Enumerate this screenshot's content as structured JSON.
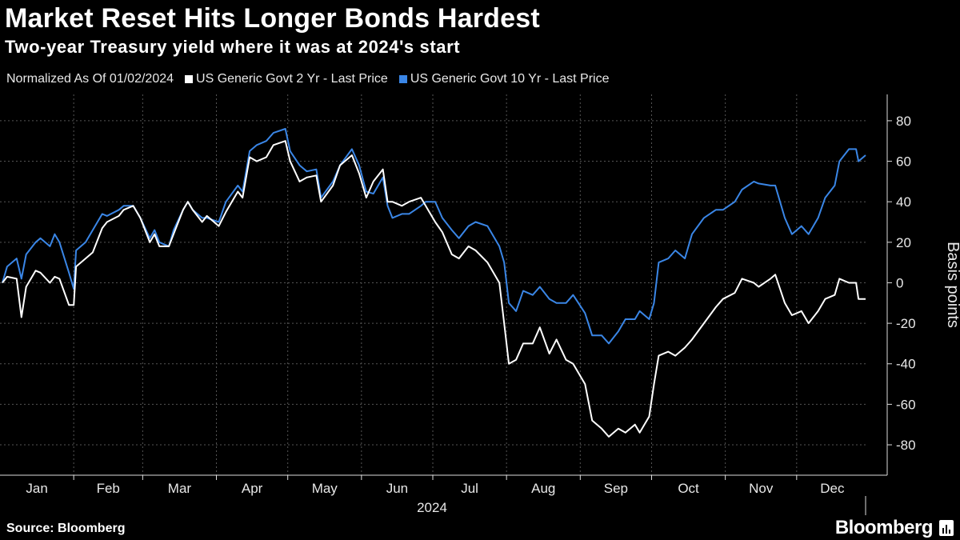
{
  "header": {
    "title": "Market Reset Hits Longer Bonds Hardest",
    "subtitle": "Two-year Treasury yield where it was at 2024's start"
  },
  "legend": {
    "note": "Normalized As Of 01/02/2024",
    "items": [
      {
        "label": "US Generic Govt 2 Yr - Last Price",
        "color": "#ffffff"
      },
      {
        "label": "US Generic Govt 10 Yr - Last Price",
        "color": "#3a86e6"
      }
    ]
  },
  "footer": {
    "source": "Source: Bloomberg",
    "brand": "Bloomberg"
  },
  "chart_data": {
    "type": "line",
    "ylabel": "Basis points",
    "xlabel": "2024",
    "ylim": [
      -95,
      93
    ],
    "yticks": [
      80,
      60,
      40,
      20,
      0,
      -20,
      -40,
      -60,
      -80
    ],
    "months": [
      "Jan",
      "Feb",
      "Mar",
      "Apr",
      "May",
      "Jun",
      "Jul",
      "Aug",
      "Sep",
      "Oct",
      "Nov",
      "Dec"
    ],
    "grid": true,
    "y_axis_side": "right",
    "series": [
      {
        "name": "US Generic Govt 2 Yr - Last Price",
        "color": "#ffffff",
        "points": [
          [
            "2024-01-02",
            0
          ],
          [
            "2024-01-04",
            3
          ],
          [
            "2024-01-08",
            2
          ],
          [
            "2024-01-10",
            -17
          ],
          [
            "2024-01-12",
            -2
          ],
          [
            "2024-01-16",
            6
          ],
          [
            "2024-01-18",
            5
          ],
          [
            "2024-01-22",
            0
          ],
          [
            "2024-01-24",
            3
          ],
          [
            "2024-01-26",
            2
          ],
          [
            "2024-01-30",
            -11
          ],
          [
            "2024-02-01",
            -11
          ],
          [
            "2024-02-02",
            8
          ],
          [
            "2024-02-06",
            12
          ],
          [
            "2024-02-09",
            15
          ],
          [
            "2024-02-13",
            27
          ],
          [
            "2024-02-15",
            30
          ],
          [
            "2024-02-20",
            33
          ],
          [
            "2024-02-22",
            36
          ],
          [
            "2024-02-26",
            38
          ],
          [
            "2024-02-29",
            32
          ],
          [
            "2024-03-04",
            20
          ],
          [
            "2024-03-06",
            24
          ],
          [
            "2024-03-08",
            18
          ],
          [
            "2024-03-12",
            18
          ],
          [
            "2024-03-14",
            24
          ],
          [
            "2024-03-18",
            36
          ],
          [
            "2024-03-20",
            40
          ],
          [
            "2024-03-22",
            36
          ],
          [
            "2024-03-26",
            30
          ],
          [
            "2024-03-28",
            33
          ],
          [
            "2024-04-02",
            28
          ],
          [
            "2024-04-05",
            35
          ],
          [
            "2024-04-10",
            45
          ],
          [
            "2024-04-12",
            42
          ],
          [
            "2024-04-15",
            62
          ],
          [
            "2024-04-18",
            60
          ],
          [
            "2024-04-22",
            62
          ],
          [
            "2024-04-25",
            68
          ],
          [
            "2024-04-30",
            70
          ],
          [
            "2024-05-02",
            60
          ],
          [
            "2024-05-06",
            50
          ],
          [
            "2024-05-09",
            52
          ],
          [
            "2024-05-13",
            53
          ],
          [
            "2024-05-15",
            40
          ],
          [
            "2024-05-20",
            48
          ],
          [
            "2024-05-23",
            58
          ],
          [
            "2024-05-28",
            63
          ],
          [
            "2024-05-31",
            54
          ],
          [
            "2024-06-03",
            42
          ],
          [
            "2024-06-06",
            50
          ],
          [
            "2024-06-10",
            56
          ],
          [
            "2024-06-12",
            40
          ],
          [
            "2024-06-14",
            40
          ],
          [
            "2024-06-18",
            38
          ],
          [
            "2024-06-21",
            40
          ],
          [
            "2024-06-26",
            42
          ],
          [
            "2024-06-28",
            38
          ],
          [
            "2024-07-02",
            30
          ],
          [
            "2024-07-05",
            25
          ],
          [
            "2024-07-09",
            14
          ],
          [
            "2024-07-12",
            12
          ],
          [
            "2024-07-16",
            18
          ],
          [
            "2024-07-19",
            16
          ],
          [
            "2024-07-24",
            10
          ],
          [
            "2024-07-29",
            0
          ],
          [
            "2024-07-31",
            -20
          ],
          [
            "2024-08-02",
            -40
          ],
          [
            "2024-08-05",
            -38
          ],
          [
            "2024-08-08",
            -30
          ],
          [
            "2024-08-12",
            -30
          ],
          [
            "2024-08-15",
            -22
          ],
          [
            "2024-08-19",
            -35
          ],
          [
            "2024-08-22",
            -28
          ],
          [
            "2024-08-26",
            -38
          ],
          [
            "2024-08-29",
            -40
          ],
          [
            "2024-09-03",
            -50
          ],
          [
            "2024-09-06",
            -68
          ],
          [
            "2024-09-10",
            -72
          ],
          [
            "2024-09-13",
            -76
          ],
          [
            "2024-09-17",
            -72
          ],
          [
            "2024-09-20",
            -74
          ],
          [
            "2024-09-24",
            -70
          ],
          [
            "2024-09-26",
            -74
          ],
          [
            "2024-09-30",
            -66
          ],
          [
            "2024-10-02",
            -50
          ],
          [
            "2024-10-04",
            -36
          ],
          [
            "2024-10-08",
            -34
          ],
          [
            "2024-10-11",
            -36
          ],
          [
            "2024-10-15",
            -32
          ],
          [
            "2024-10-18",
            -28
          ],
          [
            "2024-10-23",
            -20
          ],
          [
            "2024-10-28",
            -12
          ],
          [
            "2024-10-31",
            -8
          ],
          [
            "2024-11-05",
            -5
          ],
          [
            "2024-11-08",
            2
          ],
          [
            "2024-11-13",
            0
          ],
          [
            "2024-11-15",
            -2
          ],
          [
            "2024-11-20",
            2
          ],
          [
            "2024-11-22",
            4
          ],
          [
            "2024-11-26",
            -10
          ],
          [
            "2024-11-29",
            -16
          ],
          [
            "2024-12-03",
            -14
          ],
          [
            "2024-12-06",
            -20
          ],
          [
            "2024-12-10",
            -14
          ],
          [
            "2024-12-13",
            -8
          ],
          [
            "2024-12-17",
            -6
          ],
          [
            "2024-12-19",
            2
          ],
          [
            "2024-12-23",
            0
          ],
          [
            "2024-12-26",
            0
          ],
          [
            "2024-12-27",
            -8
          ],
          [
            "2024-12-30",
            -8
          ]
        ]
      },
      {
        "name": "US Generic Govt 10 Yr - Last Price",
        "color": "#3a86e6",
        "points": [
          [
            "2024-01-02",
            0
          ],
          [
            "2024-01-04",
            8
          ],
          [
            "2024-01-08",
            12
          ],
          [
            "2024-01-10",
            2
          ],
          [
            "2024-01-12",
            14
          ],
          [
            "2024-01-16",
            20
          ],
          [
            "2024-01-18",
            22
          ],
          [
            "2024-01-22",
            18
          ],
          [
            "2024-01-24",
            24
          ],
          [
            "2024-01-26",
            20
          ],
          [
            "2024-01-30",
            5
          ],
          [
            "2024-02-01",
            -3
          ],
          [
            "2024-02-02",
            16
          ],
          [
            "2024-02-06",
            20
          ],
          [
            "2024-02-09",
            26
          ],
          [
            "2024-02-13",
            34
          ],
          [
            "2024-02-15",
            33
          ],
          [
            "2024-02-20",
            36
          ],
          [
            "2024-02-22",
            38
          ],
          [
            "2024-02-26",
            38
          ],
          [
            "2024-02-29",
            32
          ],
          [
            "2024-03-04",
            22
          ],
          [
            "2024-03-06",
            26
          ],
          [
            "2024-03-08",
            20
          ],
          [
            "2024-03-12",
            18
          ],
          [
            "2024-03-14",
            26
          ],
          [
            "2024-03-18",
            36
          ],
          [
            "2024-03-20",
            40
          ],
          [
            "2024-03-22",
            36
          ],
          [
            "2024-03-26",
            32
          ],
          [
            "2024-03-28",
            32
          ],
          [
            "2024-04-02",
            30
          ],
          [
            "2024-04-05",
            40
          ],
          [
            "2024-04-10",
            48
          ],
          [
            "2024-04-12",
            45
          ],
          [
            "2024-04-15",
            65
          ],
          [
            "2024-04-18",
            68
          ],
          [
            "2024-04-22",
            70
          ],
          [
            "2024-04-25",
            74
          ],
          [
            "2024-04-30",
            76
          ],
          [
            "2024-05-02",
            65
          ],
          [
            "2024-05-06",
            58
          ],
          [
            "2024-05-09",
            55
          ],
          [
            "2024-05-13",
            56
          ],
          [
            "2024-05-15",
            42
          ],
          [
            "2024-05-20",
            50
          ],
          [
            "2024-05-23",
            58
          ],
          [
            "2024-05-28",
            66
          ],
          [
            "2024-05-31",
            58
          ],
          [
            "2024-06-03",
            45
          ],
          [
            "2024-06-06",
            44
          ],
          [
            "2024-06-10",
            52
          ],
          [
            "2024-06-12",
            38
          ],
          [
            "2024-06-14",
            32
          ],
          [
            "2024-06-18",
            34
          ],
          [
            "2024-06-21",
            34
          ],
          [
            "2024-06-26",
            38
          ],
          [
            "2024-06-28",
            40
          ],
          [
            "2024-07-02",
            40
          ],
          [
            "2024-07-05",
            32
          ],
          [
            "2024-07-09",
            26
          ],
          [
            "2024-07-12",
            22
          ],
          [
            "2024-07-16",
            28
          ],
          [
            "2024-07-19",
            30
          ],
          [
            "2024-07-24",
            28
          ],
          [
            "2024-07-29",
            18
          ],
          [
            "2024-07-31",
            10
          ],
          [
            "2024-08-02",
            -10
          ],
          [
            "2024-08-05",
            -14
          ],
          [
            "2024-08-08",
            -4
          ],
          [
            "2024-08-12",
            -6
          ],
          [
            "2024-08-15",
            -2
          ],
          [
            "2024-08-19",
            -8
          ],
          [
            "2024-08-22",
            -10
          ],
          [
            "2024-08-26",
            -10
          ],
          [
            "2024-08-29",
            -6
          ],
          [
            "2024-09-03",
            -15
          ],
          [
            "2024-09-06",
            -26
          ],
          [
            "2024-09-10",
            -26
          ],
          [
            "2024-09-13",
            -30
          ],
          [
            "2024-09-17",
            -24
          ],
          [
            "2024-09-20",
            -18
          ],
          [
            "2024-09-24",
            -18
          ],
          [
            "2024-09-26",
            -14
          ],
          [
            "2024-09-30",
            -18
          ],
          [
            "2024-10-02",
            -10
          ],
          [
            "2024-10-04",
            10
          ],
          [
            "2024-10-08",
            12
          ],
          [
            "2024-10-11",
            16
          ],
          [
            "2024-10-15",
            12
          ],
          [
            "2024-10-18",
            24
          ],
          [
            "2024-10-23",
            32
          ],
          [
            "2024-10-28",
            36
          ],
          [
            "2024-10-31",
            36
          ],
          [
            "2024-11-05",
            40
          ],
          [
            "2024-11-08",
            46
          ],
          [
            "2024-11-13",
            50
          ],
          [
            "2024-11-15",
            49
          ],
          [
            "2024-11-20",
            48
          ],
          [
            "2024-11-22",
            48
          ],
          [
            "2024-11-26",
            32
          ],
          [
            "2024-11-29",
            24
          ],
          [
            "2024-12-03",
            28
          ],
          [
            "2024-12-06",
            24
          ],
          [
            "2024-12-10",
            32
          ],
          [
            "2024-12-13",
            42
          ],
          [
            "2024-12-17",
            48
          ],
          [
            "2024-12-19",
            60
          ],
          [
            "2024-12-23",
            66
          ],
          [
            "2024-12-26",
            66
          ],
          [
            "2024-12-27",
            60
          ],
          [
            "2024-12-30",
            63
          ]
        ]
      }
    ]
  }
}
